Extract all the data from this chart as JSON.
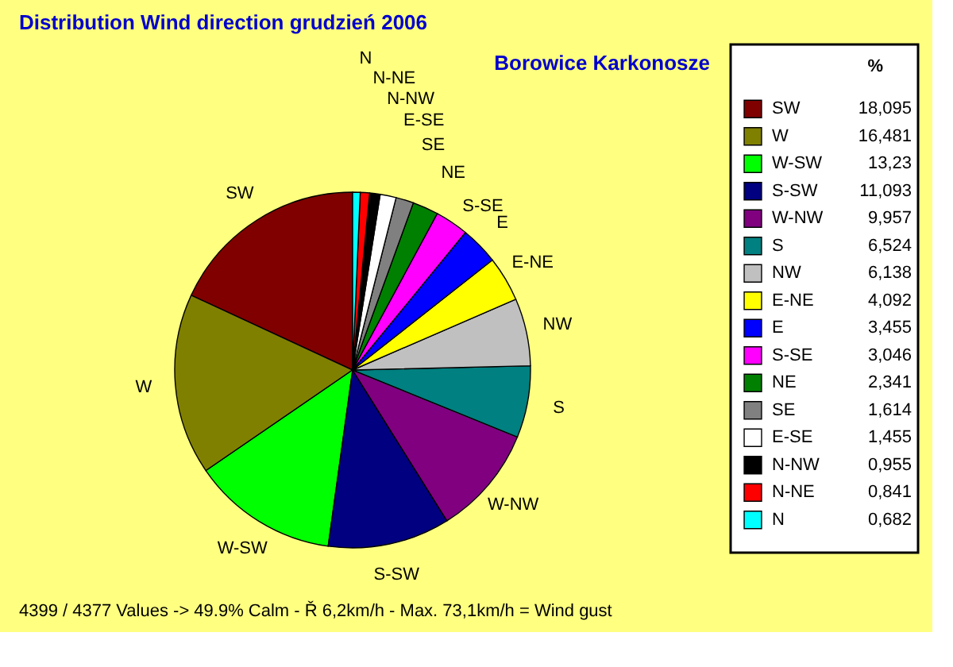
{
  "chart_data": {
    "type": "pie",
    "title": "Distribution Wind direction   grudzień 2006",
    "subtitle": "Borowice Karkonosze",
    "legend_title": "%",
    "legend": "right",
    "categories": [
      "SW",
      "W",
      "W-SW",
      "S-SW",
      "W-NW",
      "S",
      "NW",
      "E-NE",
      "E",
      "S-SE",
      "NE",
      "SE",
      "E-SE",
      "N-NW",
      "N-NE",
      "N"
    ],
    "values": [
      18.095,
      16.481,
      13.23,
      11.093,
      9.957,
      6.524,
      6.138,
      4.092,
      3.455,
      3.046,
      2.341,
      1.614,
      1.455,
      0.955,
      0.841,
      0.682
    ],
    "value_labels": [
      "18,095",
      "16,481",
      "13,23",
      "11,093",
      "9,957",
      "6,524",
      "6,138",
      "4,092",
      "3,455",
      "3,046",
      "2,341",
      "1,614",
      "1,455",
      "0,955",
      "0,841",
      "0,682"
    ],
    "colors": [
      "#800000",
      "#808000",
      "#00ff00",
      "#000080",
      "#800080",
      "#008080",
      "#c0c0c0",
      "#ffff00",
      "#0000ff",
      "#ff00ff",
      "#008000",
      "#808080",
      "#ffffff",
      "#000000",
      "#ff0000",
      "#00ffff"
    ],
    "annotations": [
      "4399 / 4377 Values  -> 49.9% Calm   -   Ř 6,2km/h  -  Max. 73,1km/h = Wind gust"
    ]
  }
}
